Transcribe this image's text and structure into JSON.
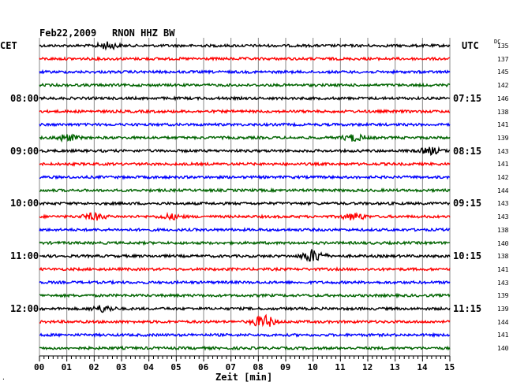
{
  "header": {
    "date": "Feb22,2009",
    "station": "RNON HHZ BW"
  },
  "labels": {
    "left_tz": "CET",
    "right_tz": "UTC",
    "right_col_header": "DC",
    "xlabel": "Zeit [min]",
    "corner_mark": "·"
  },
  "colors": {
    "trace_cycle": [
      "#000000",
      "#ff0000",
      "#0000ff",
      "#006400"
    ],
    "grid": "#888888",
    "background": "#ffffff"
  },
  "chart_data": {
    "type": "line",
    "title": "Feb22,2009   RNON HHZ BW",
    "xlabel": "Zeit [min]",
    "x_ticks": [
      "00",
      "01",
      "02",
      "03",
      "04",
      "05",
      "06",
      "07",
      "08",
      "09",
      "10",
      "11",
      "12",
      "13",
      "14",
      "15"
    ],
    "xlim": [
      0,
      15
    ],
    "rows": 24,
    "left_time_labels": [
      {
        "row": 4,
        "text": "08:00"
      },
      {
        "row": 8,
        "text": "09:00"
      },
      {
        "row": 12,
        "text": "10:00"
      },
      {
        "row": 16,
        "text": "11:00"
      },
      {
        "row": 20,
        "text": "12:00"
      }
    ],
    "right_time_labels": [
      {
        "row": 4,
        "text": "07:15"
      },
      {
        "row": 8,
        "text": "08:15"
      },
      {
        "row": 12,
        "text": "09:15"
      },
      {
        "row": 16,
        "text": "10:15"
      },
      {
        "row": 20,
        "text": "11:15"
      }
    ],
    "dc_offsets": [
      135,
      137,
      145,
      142,
      146,
      138,
      141,
      139,
      143,
      141,
      142,
      144,
      143,
      143,
      138,
      140,
      138,
      141,
      143,
      139,
      139,
      144,
      141,
      140
    ],
    "events": [
      {
        "row": 0,
        "minute": 2.5,
        "amplitude": "medium"
      },
      {
        "row": 7,
        "minute": 1.0,
        "amplitude": "medium"
      },
      {
        "row": 7,
        "minute": 11.5,
        "amplitude": "medium"
      },
      {
        "row": 8,
        "minute": 14.3,
        "amplitude": "medium"
      },
      {
        "row": 13,
        "minute": 2.0,
        "amplitude": "medium"
      },
      {
        "row": 13,
        "minute": 4.8,
        "amplitude": "small"
      },
      {
        "row": 13,
        "minute": 11.5,
        "amplitude": "medium"
      },
      {
        "row": 16,
        "minute": 10.0,
        "amplitude": "large"
      },
      {
        "row": 20,
        "minute": 2.3,
        "amplitude": "medium"
      },
      {
        "row": 21,
        "minute": 8.2,
        "amplitude": "large"
      }
    ]
  }
}
